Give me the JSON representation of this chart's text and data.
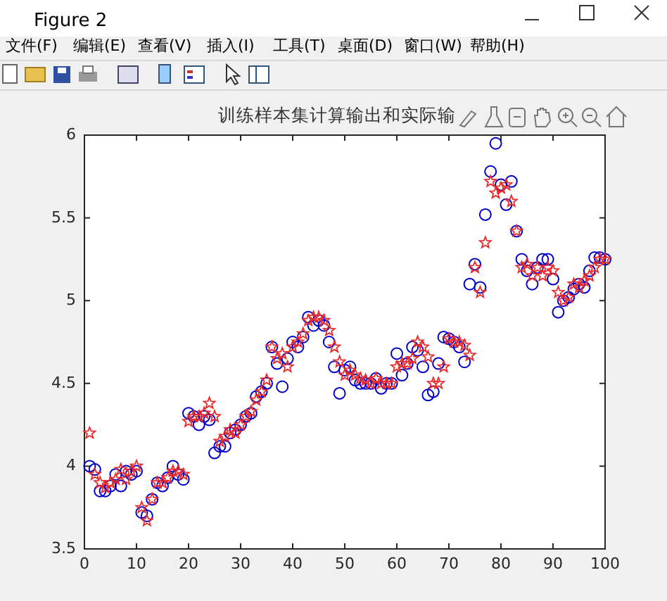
{
  "chart_data": {
    "type": "scatter",
    "title": "训练样本集计算输出和实际输",
    "annotations": [
      "Figure 2",
      "文件(F)",
      "编辑(E)",
      "查看(V)",
      "插入(I)",
      "工具(T)",
      "桌面(D)",
      "窗口(W)",
      "帮助(H)"
    ],
    "x": [
      1,
      2,
      3,
      4,
      5,
      6,
      7,
      8,
      9,
      10,
      11,
      12,
      13,
      14,
      15,
      16,
      17,
      18,
      19,
      20,
      21,
      22,
      23,
      24,
      25,
      26,
      27,
      28,
      29,
      30,
      31,
      32,
      33,
      34,
      35,
      36,
      37,
      38,
      39,
      40,
      41,
      42,
      43,
      44,
      45,
      46,
      47,
      48,
      49,
      50,
      51,
      52,
      53,
      54,
      55,
      56,
      57,
      58,
      59,
      60,
      61,
      62,
      63,
      64,
      65,
      66,
      67,
      68,
      69,
      70,
      71,
      72,
      73,
      74,
      75,
      76,
      77,
      78,
      79,
      80,
      81,
      82,
      83,
      84,
      85,
      86,
      87,
      88,
      89,
      90,
      91,
      92,
      93,
      94,
      95,
      96,
      97,
      98,
      99,
      100
    ],
    "series": [
      {
        "color": "#0000cc",
        "marker": "circle",
        "values": [
          4.0,
          3.98,
          3.85,
          3.85,
          3.88,
          3.95,
          3.88,
          3.97,
          3.95,
          3.97,
          3.72,
          3.7,
          3.8,
          3.9,
          3.88,
          3.93,
          4.0,
          3.95,
          3.92,
          4.32,
          4.3,
          4.25,
          4.3,
          4.28,
          4.08,
          4.12,
          4.12,
          4.2,
          4.22,
          4.25,
          4.3,
          4.32,
          4.42,
          4.45,
          4.5,
          4.72,
          4.62,
          4.48,
          4.65,
          4.75,
          4.72,
          4.78,
          4.9,
          4.85,
          4.88,
          4.85,
          4.75,
          4.6,
          4.44,
          4.58,
          4.6,
          4.52,
          4.5,
          4.5,
          4.5,
          4.53,
          4.47,
          4.5,
          4.5,
          4.68,
          4.55,
          4.62,
          4.72,
          4.7,
          4.6,
          4.43,
          4.45,
          4.62,
          4.78,
          4.77,
          4.75,
          4.72,
          4.63,
          5.1,
          5.22,
          5.08,
          5.52,
          5.78,
          5.95,
          5.7,
          5.58,
          5.72,
          5.42,
          5.25,
          5.18,
          5.1,
          5.2,
          5.25,
          5.25,
          5.13,
          4.93,
          5.0,
          5.02,
          5.07,
          5.1,
          5.08,
          5.18,
          5.26,
          5.26,
          5.25
        ]
      },
      {
        "color": "#e82a2a",
        "marker": "star",
        "values": [
          4.2,
          3.95,
          3.9,
          3.87,
          3.9,
          3.92,
          3.98,
          3.92,
          3.97,
          4.0,
          3.75,
          3.67,
          3.8,
          3.9,
          3.9,
          3.93,
          3.97,
          3.97,
          3.95,
          4.27,
          4.3,
          4.3,
          4.32,
          4.38,
          4.3,
          4.15,
          4.18,
          4.22,
          4.2,
          4.25,
          4.3,
          4.33,
          4.4,
          4.45,
          4.52,
          4.72,
          4.65,
          4.68,
          4.6,
          4.72,
          4.75,
          4.8,
          4.88,
          4.9,
          4.9,
          4.88,
          4.82,
          4.72,
          4.63,
          4.55,
          4.58,
          4.55,
          4.53,
          4.52,
          4.5,
          4.53,
          4.5,
          4.5,
          4.5,
          4.6,
          4.62,
          4.62,
          4.65,
          4.75,
          4.72,
          4.66,
          4.5,
          4.5,
          4.6,
          4.77,
          4.75,
          4.75,
          4.73,
          4.67,
          5.2,
          5.05,
          5.35,
          5.72,
          5.65,
          5.68,
          5.7,
          5.6,
          5.42,
          5.2,
          5.22,
          5.15,
          5.2,
          5.15,
          5.2,
          5.18,
          5.05,
          5.0,
          5.02,
          5.1,
          5.08,
          5.12,
          5.15,
          5.2,
          5.25,
          5.25
        ]
      }
    ],
    "xlim": [
      0,
      100
    ],
    "xticks": [
      0,
      10,
      20,
      30,
      40,
      50,
      60,
      70,
      80,
      90,
      100
    ],
    "ylim": [
      3.5,
      6
    ],
    "yticks": [
      3.5,
      4,
      4.5,
      5,
      5.5,
      6
    ]
  }
}
